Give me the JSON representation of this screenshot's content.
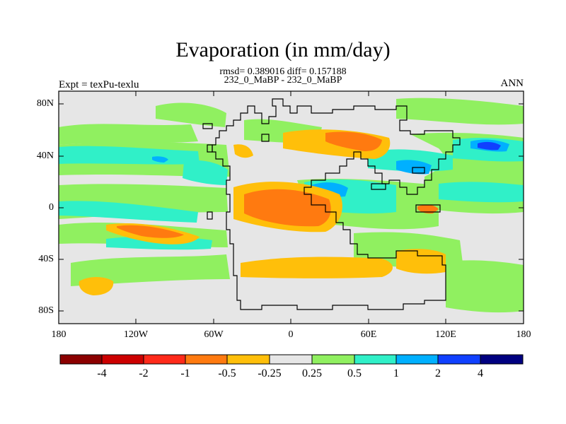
{
  "title": "Evaporation (in mm/day)",
  "stats_line": "rmsd= 0.389016 diff= 0.157188",
  "comparison": "232_0_MaBP - 232_0_MaBP",
  "experiment": "Expt = texPu-texlu",
  "period": "ANN",
  "y_ticks": [
    "80N",
    "40N",
    "0",
    "40S",
    "80S"
  ],
  "x_ticks": [
    "180",
    "120W",
    "60W",
    "0",
    "60E",
    "120E",
    "180"
  ],
  "colorbar": {
    "colors": [
      "#8b0000",
      "#cc0000",
      "#ff2a1a",
      "#ff7a10",
      "#ffbf0a",
      "#e6e6e6",
      "#90f060",
      "#30f0c8",
      "#00b0ff",
      "#1040ff",
      "#000080"
    ],
    "labels": [
      "-4",
      "-2",
      "-1",
      "-0.5",
      "-0.25",
      "0.25",
      "0.5",
      "1",
      "2",
      "4"
    ]
  },
  "map_colors": {
    "background": "#e6e6e6",
    "green": "#90f060",
    "cyan": "#30f0c8",
    "blue": "#00b0ff",
    "darkblue": "#1040ff",
    "yellow": "#ffbf0a",
    "orange": "#ff7a10"
  }
}
